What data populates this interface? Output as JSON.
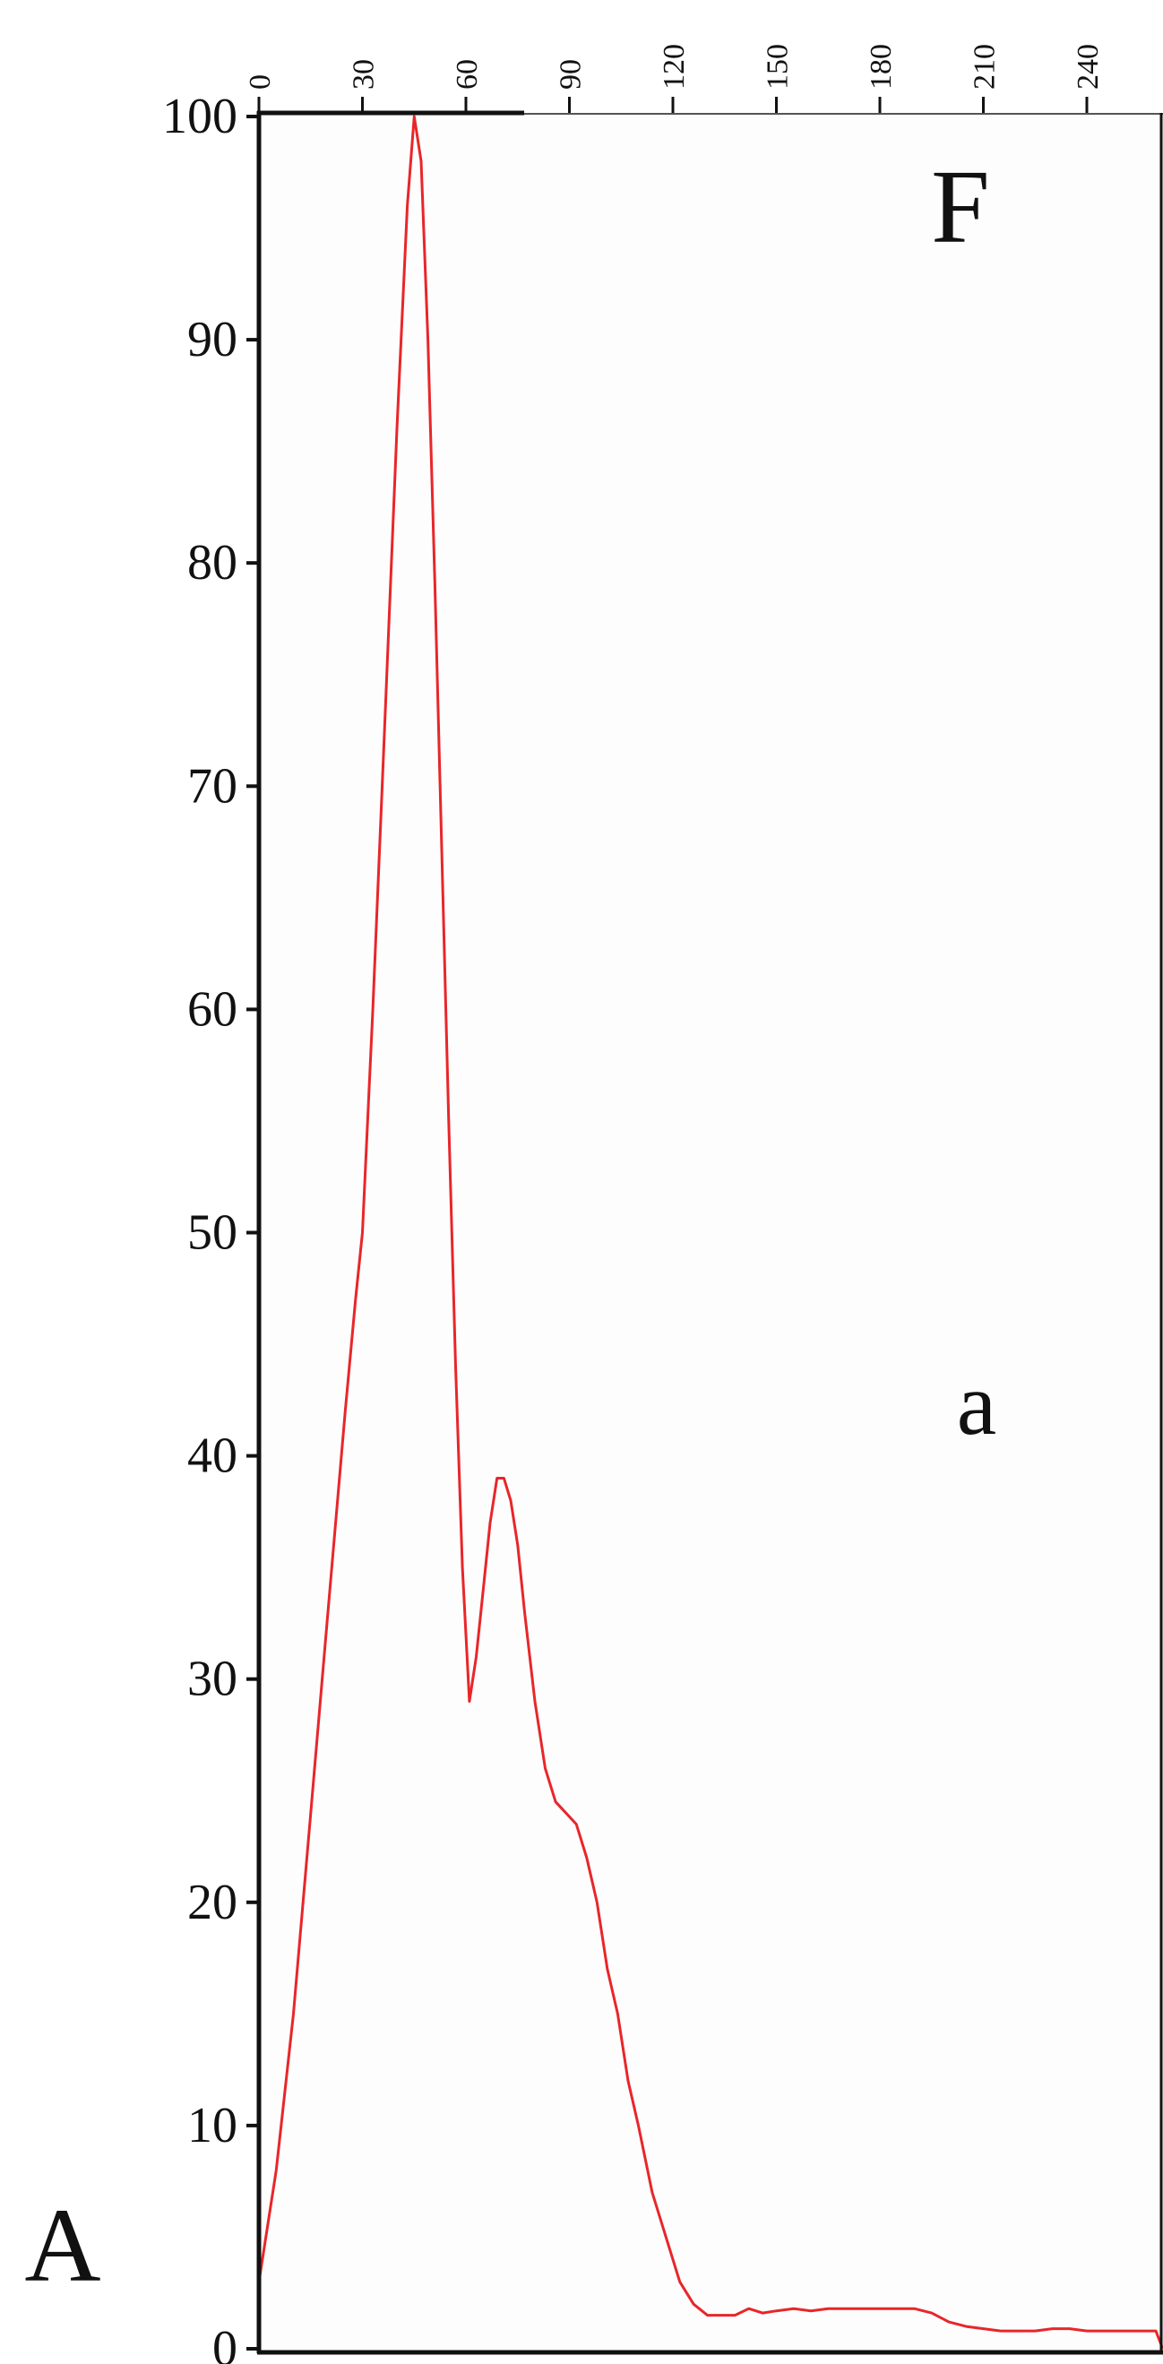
{
  "chart_data": {
    "type": "line",
    "annotations": {
      "panel_label": "A",
      "sub_label": "a",
      "corner_label": "F"
    },
    "xlim": [
      0,
      262
    ],
    "ylim": [
      0,
      100
    ],
    "x_ticks": [
      "0",
      "30",
      "60",
      "90",
      "120",
      "150",
      "180",
      "210",
      "240"
    ],
    "y_ticks": [
      "0",
      "10",
      "20",
      "30",
      "40",
      "50",
      "60",
      "70",
      "80",
      "90",
      "100"
    ],
    "grid": false,
    "series": [
      {
        "color": "#e8262a",
        "x": [
          0,
          5,
          10,
          15,
          20,
          25,
          28,
          30,
          33,
          36,
          40,
          43,
          45,
          47,
          49,
          51,
          53,
          55,
          57,
          59,
          61,
          63,
          65,
          67,
          69,
          71,
          73,
          75,
          77,
          80,
          83,
          86,
          89,
          92,
          95,
          98,
          101,
          104,
          107,
          110,
          114,
          118,
          122,
          126,
          130,
          134,
          138,
          142,
          146,
          150,
          155,
          160,
          165,
          170,
          175,
          180,
          185,
          190,
          195,
          200,
          205,
          210,
          215,
          220,
          225,
          230,
          235,
          240,
          245,
          250,
          255,
          260,
          262
        ],
        "y": [
          3,
          8,
          15,
          24,
          33,
          42,
          47,
          50,
          60,
          71,
          86,
          96,
          100,
          98,
          90,
          79,
          67,
          55,
          44,
          35,
          29,
          31,
          34,
          37,
          39,
          39,
          38,
          36,
          33,
          29,
          26,
          24.5,
          24,
          23.5,
          22,
          20,
          17,
          15,
          12,
          10,
          7,
          5,
          3,
          2,
          1.5,
          1.5,
          1.5,
          1.8,
          1.6,
          1.7,
          1.8,
          1.7,
          1.8,
          1.8,
          1.8,
          1.8,
          1.8,
          1.8,
          1.6,
          1.2,
          1.0,
          0.9,
          0.8,
          0.8,
          0.8,
          0.9,
          0.9,
          0.8,
          0.8,
          0.8,
          0.8,
          0.8,
          0.0
        ]
      }
    ]
  }
}
